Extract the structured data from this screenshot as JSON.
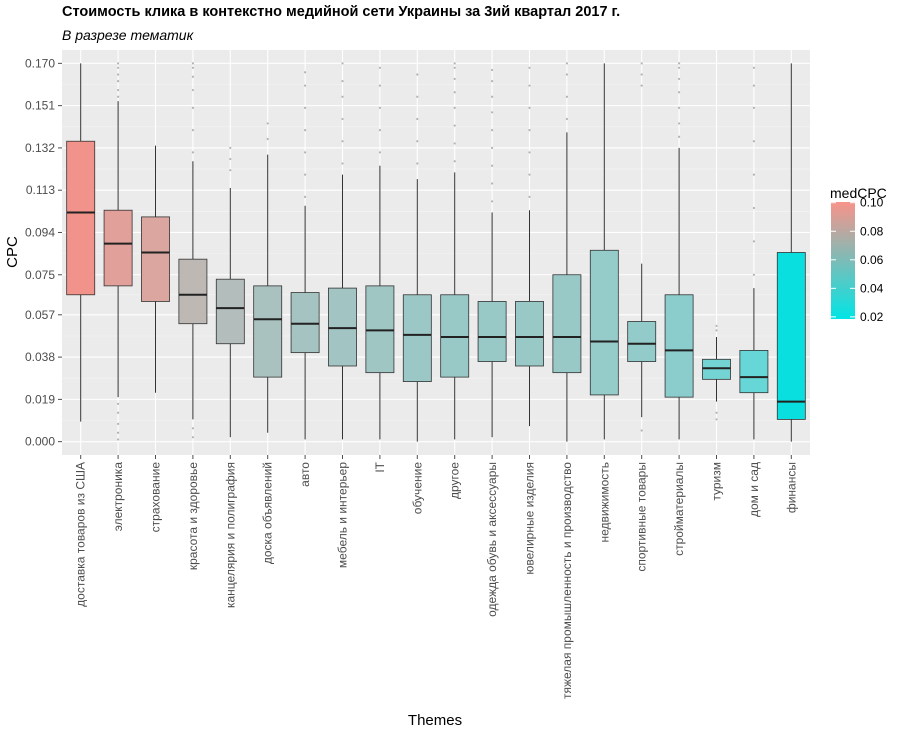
{
  "chart_data": {
    "type": "boxplot",
    "title": "Стоимость клика в контекстно медийной сети Украины за 3ий квартал 2017 г.",
    "subtitle": "В разрезе тематик",
    "xlabel": "Themes",
    "ylabel": "CPC",
    "ylim": [
      -0.006,
      0.176
    ],
    "yticks": [
      0.0,
      0.019,
      0.038,
      0.057,
      0.075,
      0.094,
      0.113,
      0.132,
      0.151,
      0.17
    ],
    "ytick_labels": [
      "0.000",
      "0.019",
      "0.038",
      "0.057",
      "0.075",
      "0.094",
      "0.113",
      "0.132",
      "0.151",
      "0.170"
    ],
    "grid": true,
    "legend": {
      "title": "medCPC",
      "position": "right",
      "low_color": "#00e5e5",
      "high_color": "#f8938a",
      "range": [
        0.018,
        0.101
      ],
      "ticks": [
        0.02,
        0.04,
        0.06,
        0.08,
        0.1
      ],
      "tick_labels": [
        "0.02",
        "0.04",
        "0.06",
        "0.08",
        "0.10"
      ]
    },
    "categories": [
      "доставка товаров из США",
      "электроника",
      "страхование",
      "красота и здоровье",
      "канцелярия и полиграфия",
      "доска объявлений",
      "авто",
      "мебель и интерьер",
      "IT",
      "обучение",
      "другое",
      "одежда обувь и аксессуары",
      "ювелирные изделия",
      "тяжелая промышленность и производство",
      "недвижимость",
      "спортивные товары",
      "стройматериалы",
      "туризм",
      "дом и сад",
      "финансы"
    ],
    "boxes": [
      {
        "q1": 0.066,
        "median": 0.103,
        "q3": 0.135,
        "whisker_low": 0.009,
        "whisker_high": 0.17,
        "outliers": []
      },
      {
        "q1": 0.07,
        "median": 0.089,
        "q3": 0.104,
        "whisker_low": 0.02,
        "whisker_high": 0.153,
        "outliers": [
          0.001,
          0.004,
          0.008,
          0.013,
          0.017,
          0.155,
          0.158,
          0.162,
          0.165,
          0.168,
          0.17
        ]
      },
      {
        "q1": 0.063,
        "median": 0.085,
        "q3": 0.101,
        "whisker_low": 0.022,
        "whisker_high": 0.133,
        "outliers": []
      },
      {
        "q1": 0.053,
        "median": 0.066,
        "q3": 0.082,
        "whisker_low": 0.01,
        "whisker_high": 0.126,
        "outliers": [
          0.002,
          0.006,
          0.13,
          0.14,
          0.15,
          0.158,
          0.164,
          0.168,
          0.17
        ]
      },
      {
        "q1": 0.044,
        "median": 0.06,
        "q3": 0.073,
        "whisker_low": 0.002,
        "whisker_high": 0.114,
        "outliers": [
          0.122,
          0.127,
          0.132
        ]
      },
      {
        "q1": 0.029,
        "median": 0.055,
        "q3": 0.07,
        "whisker_low": 0.004,
        "whisker_high": 0.129,
        "outliers": [
          0.136,
          0.143
        ]
      },
      {
        "q1": 0.04,
        "median": 0.053,
        "q3": 0.067,
        "whisker_low": 0.001,
        "whisker_high": 0.106,
        "outliers": [
          0.11,
          0.12,
          0.13,
          0.14,
          0.15,
          0.16,
          0.166
        ]
      },
      {
        "q1": 0.034,
        "median": 0.051,
        "q3": 0.069,
        "whisker_low": 0.001,
        "whisker_high": 0.12,
        "outliers": [
          0.125,
          0.135,
          0.145,
          0.155,
          0.162,
          0.17
        ]
      },
      {
        "q1": 0.031,
        "median": 0.05,
        "q3": 0.07,
        "whisker_low": 0.001,
        "whisker_high": 0.124,
        "outliers": [
          0.13,
          0.14,
          0.15,
          0.16,
          0.168
        ]
      },
      {
        "q1": 0.027,
        "median": 0.048,
        "q3": 0.066,
        "whisker_low": 0.0,
        "whisker_high": 0.118,
        "outliers": [
          0.125,
          0.135,
          0.145,
          0.155,
          0.165
        ]
      },
      {
        "q1": 0.029,
        "median": 0.047,
        "q3": 0.066,
        "whisker_low": 0.001,
        "whisker_high": 0.121,
        "outliers": [
          0.126,
          0.134,
          0.142,
          0.15,
          0.157,
          0.163,
          0.168,
          0.17
        ]
      },
      {
        "q1": 0.036,
        "median": 0.047,
        "q3": 0.063,
        "whisker_low": 0.002,
        "whisker_high": 0.103,
        "outliers": [
          0.108,
          0.116,
          0.124,
          0.132,
          0.14,
          0.148,
          0.155,
          0.162,
          0.167
        ]
      },
      {
        "q1": 0.034,
        "median": 0.047,
        "q3": 0.063,
        "whisker_low": 0.007,
        "whisker_high": 0.104,
        "outliers": [
          0.11,
          0.12,
          0.13,
          0.14,
          0.15,
          0.16,
          0.168
        ]
      },
      {
        "q1": 0.031,
        "median": 0.047,
        "q3": 0.075,
        "whisker_low": 0.0,
        "whisker_high": 0.139,
        "outliers": [
          0.145,
          0.155,
          0.165,
          0.17
        ]
      },
      {
        "q1": 0.021,
        "median": 0.045,
        "q3": 0.086,
        "whisker_low": 0.001,
        "whisker_high": 0.17,
        "outliers": []
      },
      {
        "q1": 0.036,
        "median": 0.044,
        "q3": 0.054,
        "whisker_low": 0.011,
        "whisker_high": 0.08,
        "outliers": [
          0.005,
          0.16,
          0.165,
          0.17
        ]
      },
      {
        "q1": 0.02,
        "median": 0.041,
        "q3": 0.066,
        "whisker_low": 0.001,
        "whisker_high": 0.132,
        "outliers": [
          0.137,
          0.143,
          0.15,
          0.157,
          0.163,
          0.168,
          0.17
        ]
      },
      {
        "q1": 0.028,
        "median": 0.033,
        "q3": 0.037,
        "whisker_low": 0.018,
        "whisker_high": 0.047,
        "outliers": [
          0.01,
          0.013,
          0.05,
          0.052
        ]
      },
      {
        "q1": 0.022,
        "median": 0.029,
        "q3": 0.041,
        "whisker_low": 0.001,
        "whisker_high": 0.069,
        "outliers": [
          0.075,
          0.09,
          0.105,
          0.12,
          0.135,
          0.15,
          0.16,
          0.168
        ]
      },
      {
        "q1": 0.01,
        "median": 0.018,
        "q3": 0.085,
        "whisker_low": 0.0,
        "whisker_high": 0.17,
        "outliers": []
      }
    ]
  }
}
